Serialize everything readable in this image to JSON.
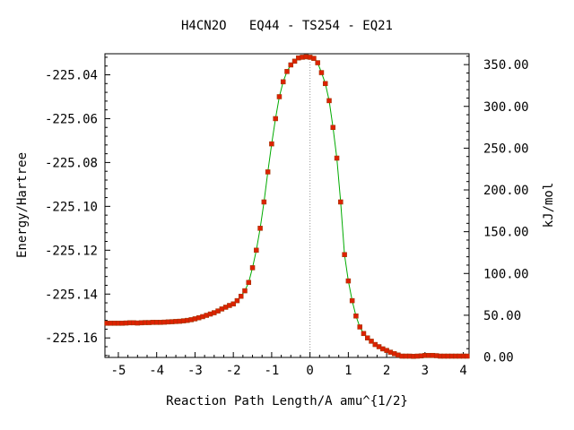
{
  "chart_data": {
    "type": "line",
    "title": "H4CN2O   EQ44 - TS254 - EQ21",
    "xlabel": "Reaction Path Length/A amu^{1/2}",
    "ylabel": "Energy/Hartree",
    "y2label": "kJ/mol",
    "xlim": [
      -5.35,
      4.15
    ],
    "ylim": [
      -225.1689,
      -225.0304
    ],
    "y2lim": [
      -0.5,
      363.0
    ],
    "x_ticks": [
      -5,
      -4,
      -3,
      -2,
      -1,
      0,
      1,
      2,
      3,
      4
    ],
    "x_tick_labels": [
      "-5",
      "-4",
      "-3",
      "-2",
      "-1",
      "0",
      "1",
      "2",
      "3",
      "4"
    ],
    "y_ticks": [
      -225.04,
      -225.06,
      -225.08,
      -225.1,
      -225.12,
      -225.14,
      -225.16
    ],
    "y_tick_labels": [
      "-225.04",
      "-225.06",
      "-225.08",
      "-225.10",
      "-225.12",
      "-225.14",
      "-225.16"
    ],
    "y2_ticks": [
      350,
      300,
      250,
      200,
      150,
      100,
      50,
      0
    ],
    "y2_tick_labels": [
      "350.00",
      "300.00",
      "250.00",
      "200.00",
      "150.00",
      "100.00",
      "50.00",
      "0.00"
    ],
    "ts_marker_x": 0,
    "grid": false,
    "series": [
      {
        "line_color": "#00aa00",
        "marker_color": "#dd2200",
        "x": [
          -5.3,
          -5.2,
          -5.1,
          -5.0,
          -4.9,
          -4.8,
          -4.7,
          -4.6,
          -4.5,
          -4.4,
          -4.3,
          -4.2,
          -4.1,
          -4.0,
          -3.9,
          -3.8,
          -3.7,
          -3.6,
          -3.5,
          -3.4,
          -3.3,
          -3.2,
          -3.1,
          -3.0,
          -2.9,
          -2.8,
          -2.7,
          -2.6,
          -2.5,
          -2.4,
          -2.3,
          -2.2,
          -2.1,
          -2.0,
          -1.9,
          -1.8,
          -1.7,
          -1.6,
          -1.5,
          -1.4,
          -1.3,
          -1.2,
          -1.1,
          -1.0,
          -0.9,
          -0.8,
          -0.7,
          -0.6,
          -0.5,
          -0.4,
          -0.3,
          -0.2,
          -0.1,
          0.0,
          0.1,
          0.2,
          0.3,
          0.4,
          0.5,
          0.6,
          0.7,
          0.8,
          0.9,
          1.0,
          1.1,
          1.2,
          1.3,
          1.4,
          1.5,
          1.6,
          1.7,
          1.8,
          1.9,
          2.0,
          2.1,
          2.2,
          2.3,
          2.4,
          2.5,
          2.6,
          2.7,
          2.8,
          2.9,
          3.0,
          3.1,
          3.2,
          3.3,
          3.4,
          3.5,
          3.6,
          3.7,
          3.8,
          3.9,
          4.0,
          4.1
        ],
        "y": [
          -225.1533,
          -225.1533,
          -225.1533,
          -225.1533,
          -225.1533,
          -225.1532,
          -225.1531,
          -225.1531,
          -225.1532,
          -225.1531,
          -225.153,
          -225.153,
          -225.1529,
          -225.1529,
          -225.1529,
          -225.1528,
          -225.1527,
          -225.1526,
          -225.1525,
          -225.1524,
          -225.1522,
          -225.152,
          -225.1517,
          -225.1513,
          -225.1508,
          -225.1503,
          -225.1497,
          -225.1491,
          -225.1485,
          -225.1477,
          -225.1468,
          -225.146,
          -225.1452,
          -225.1445,
          -225.143,
          -225.141,
          -225.1385,
          -225.1347,
          -225.128,
          -225.12,
          -225.11,
          -225.098,
          -225.0843,
          -225.0715,
          -225.06,
          -225.05,
          -225.0432,
          -225.0385,
          -225.0355,
          -225.0338,
          -225.0323,
          -225.032,
          -225.0318,
          -225.032,
          -225.0325,
          -225.0345,
          -225.039,
          -225.044,
          -225.0518,
          -225.064,
          -225.078,
          -225.098,
          -225.122,
          -225.134,
          -225.143,
          -225.15,
          -225.155,
          -225.158,
          -225.16,
          -225.1615,
          -225.163,
          -225.164,
          -225.165,
          -225.1657,
          -225.1665,
          -225.1672,
          -225.1678,
          -225.1683,
          -225.1683,
          -225.1683,
          -225.1684,
          -225.1683,
          -225.1682,
          -225.168,
          -225.168,
          -225.168,
          -225.1681,
          -225.1683,
          -225.1683,
          -225.1683,
          -225.1683,
          -225.1683,
          -225.1683,
          -225.1683,
          -225.1683
        ]
      }
    ]
  }
}
